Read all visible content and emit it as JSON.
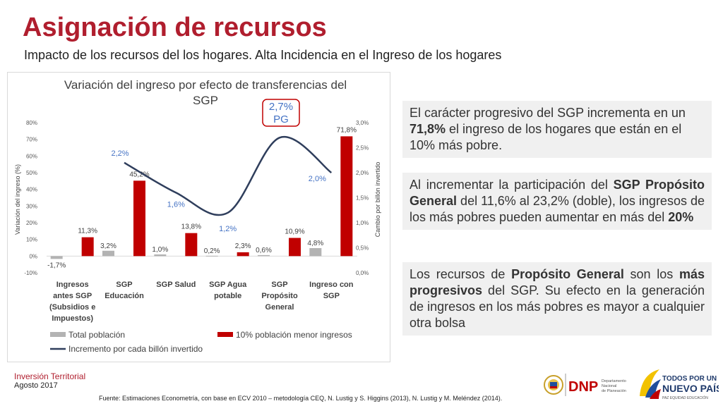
{
  "header": {
    "title": "Asignación de recursos",
    "subtitle": "Impacto de los recursos del los hogares. Alta Incidencia en el Ingreso de los hogares"
  },
  "chart_data": {
    "type": "bar",
    "title": "Variación del ingreso por efecto de transferencias del SGP",
    "ylabel": "Variación del ingreso (%)",
    "y2label": "Cambio por billón invertido",
    "ylim": [
      -10,
      80
    ],
    "y2lim": [
      0,
      3
    ],
    "yticks": [
      "80%",
      "70%",
      "60%",
      "50%",
      "40%",
      "30%",
      "20%",
      "10%",
      "0%",
      "-10%"
    ],
    "y2ticks": [
      "3,0%",
      "2,5%",
      "2,0%",
      "1,5%",
      "1,0%",
      "0,5%",
      "0,0%"
    ],
    "categories": [
      [
        "Ingresos",
        "antes SGP",
        "(Subsidios e",
        "Impuestos)"
      ],
      [
        "SGP",
        "Educación"
      ],
      [
        "SGP Salud"
      ],
      [
        "SGP Agua",
        "potable"
      ],
      [
        "SGP",
        "Propósito",
        "General"
      ],
      [
        "Ingreso con",
        "SGP"
      ]
    ],
    "series": [
      {
        "name": "Total población",
        "axis": "left",
        "kind": "bar",
        "color": "#b3b3b3",
        "values": [
          -1.7,
          3.2,
          1.0,
          0.2,
          0.6,
          4.8
        ],
        "labels": [
          "-1,7%",
          "3,2%",
          "1,0%",
          "0,2%",
          "0,6%",
          "4,8%"
        ]
      },
      {
        "name": "10% población menor ingresos",
        "axis": "left",
        "kind": "bar",
        "color": "#c00000",
        "values": [
          11.3,
          45.2,
          13.8,
          2.3,
          10.9,
          71.8
        ],
        "labels": [
          "11,3%",
          "45,2%",
          "13,8%",
          "2,3%",
          "10,9%",
          "71,8%"
        ]
      },
      {
        "name": "Incremento por cada billón invertido",
        "axis": "right",
        "kind": "line",
        "color": "#2f3e5c",
        "values": [
          null,
          2.2,
          1.6,
          1.2,
          2.7,
          2.0
        ],
        "labels": [
          "",
          "2,2%",
          "1,6%",
          "1,2%",
          "",
          "2,0%"
        ],
        "label_color": "#4472c4"
      }
    ],
    "highlight": {
      "value": "2,7%",
      "label": "PG"
    },
    "grid": false,
    "legend": "bottom"
  },
  "callouts": [
    {
      "pre": "El carácter progresivo del SGP incrementa en un ",
      "bold": "71,8%",
      "mid": " el ingreso de los hogares que están en el 10% más pobre.",
      "bold2": "",
      "post": ""
    },
    {
      "pre": "Al incrementar la participación del ",
      "bold": "SGP Propósito General",
      "mid": " del 11,6%  al 23,2% (doble), los ingresos de los más pobres pueden aumentar en más del ",
      "bold2": "20%",
      "post": ""
    },
    {
      "pre": "Los recursos de ",
      "bold": "Propósito General",
      "mid": " son los ",
      "bold2": "más progresivos",
      "post": " del SGP. Su efecto en la generación de ingresos en los más pobres es mayor a cualquier otra bolsa"
    }
  ],
  "footer": {
    "org": "Inversión Territorial",
    "date": "Agosto 2017",
    "source": "Fuente: Estimaciones Econometría, con base en ECV 2010 – metodología CEQ, N. Lustig y S. Higgins (2013), N. Lustig y M. Meléndez (2014).",
    "logos": {
      "dnp_text": "DNP",
      "dnp_sub1": "Departamento",
      "dnp_sub2": "Nacional",
      "dnp_sub3": "de Planeación",
      "gov_line1": "TODOS POR UN",
      "gov_line2": "NUEVO PAÍS",
      "gov_line3": "PAZ   EQUIDAD   EDUCACIÓN"
    }
  }
}
